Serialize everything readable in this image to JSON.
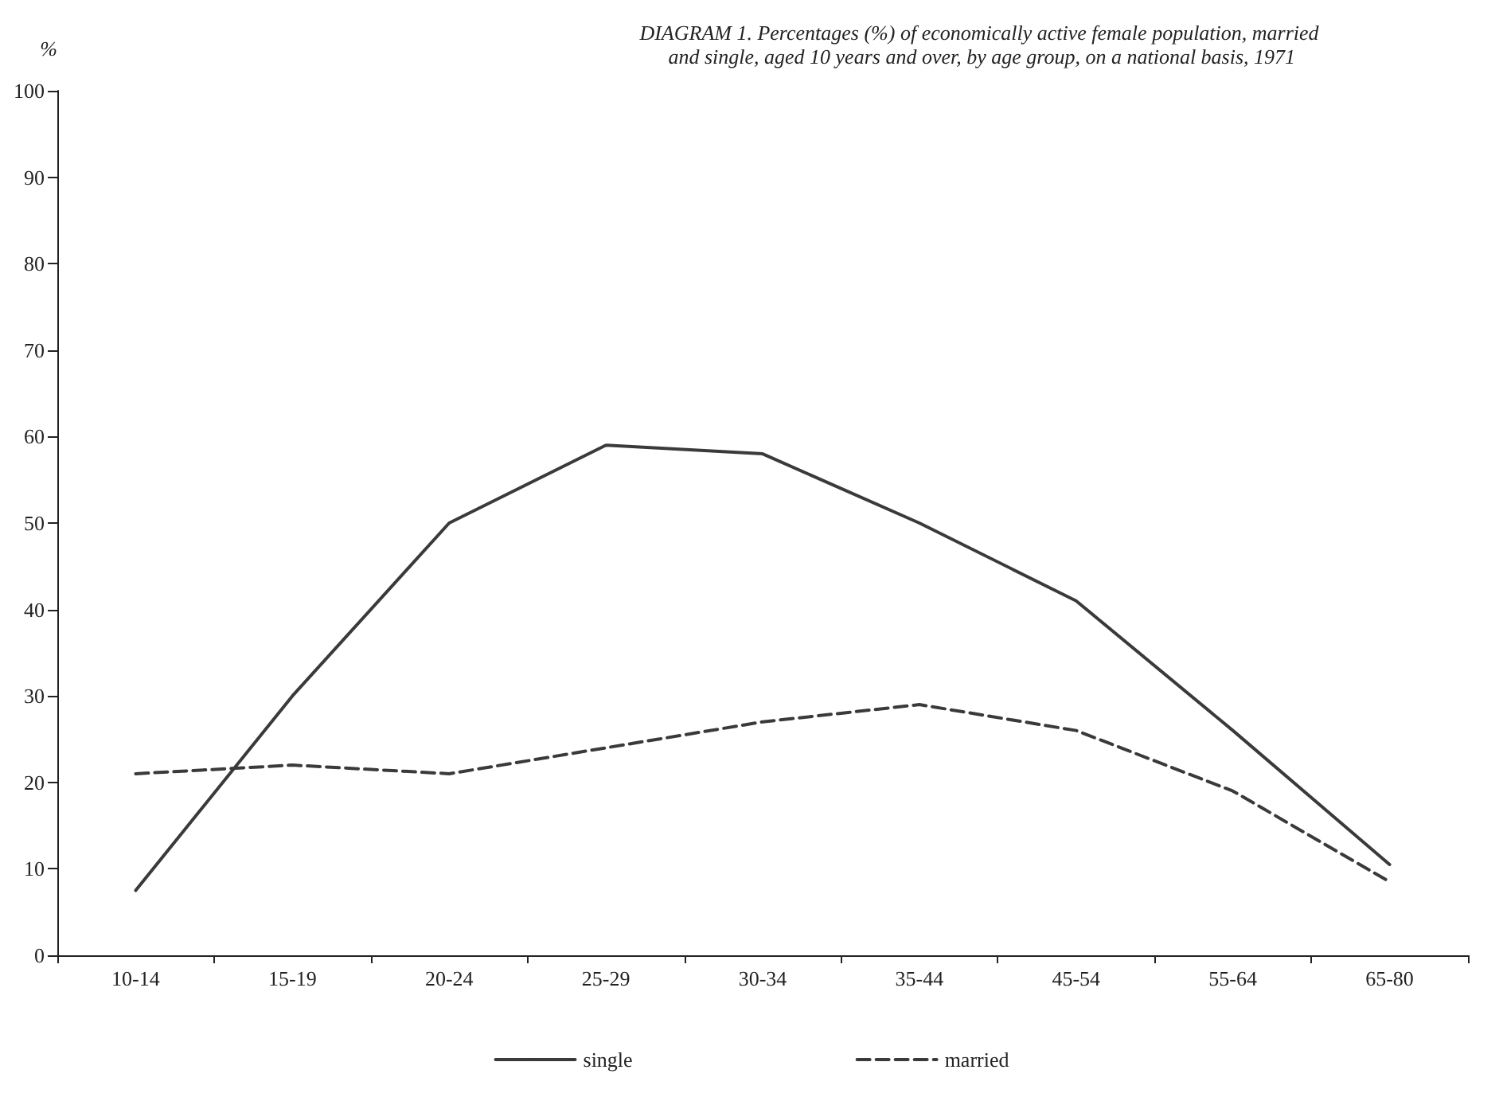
{
  "chart_data": {
    "type": "line",
    "title": "DIAGRAM 1. Percentages (%) of economically active female population, married and single, aged 10 years and over, by age group, on a national basis, 1971",
    "ylabel": "%",
    "categories": [
      "10-14",
      "15-19",
      "20-24",
      "25-29",
      "30-34",
      "35-44",
      "45-54",
      "55-64",
      "65-80"
    ],
    "series": [
      {
        "name": "single",
        "color": "#3a3a3a",
        "line_style": "solid",
        "values": [
          7.5,
          30,
          50,
          59,
          58,
          50,
          41,
          26,
          10.5
        ]
      },
      {
        "name": "married",
        "color": "#3a3a3a",
        "line_style": "dashed",
        "values": [
          21,
          22,
          21,
          24,
          27,
          29,
          26,
          19,
          8.5
        ]
      }
    ],
    "ylim": [
      0,
      100
    ],
    "yticks": [
      0,
      10,
      20,
      30,
      40,
      50,
      60,
      70,
      80,
      90,
      100
    ],
    "grid": false,
    "legend": "bottom",
    "marker": "none"
  }
}
